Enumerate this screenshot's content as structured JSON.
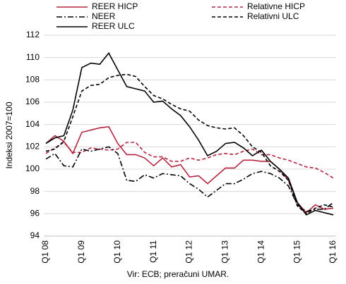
{
  "chart_data": {
    "type": "line",
    "y_label": "Indeksi 2007=100",
    "source": "Vir: ECB; preračuni UMAR.",
    "categories": [
      "Q1 08",
      null,
      null,
      null,
      "Q1 09",
      null,
      null,
      null,
      "Q1 10",
      null,
      null,
      null,
      "Q1 11",
      null,
      null,
      null,
      "Q1 12",
      null,
      null,
      null,
      "Q1 13",
      null,
      null,
      null,
      "Q1 14",
      null,
      null,
      null,
      "Q1 15",
      null,
      null,
      null,
      "Q1 16"
    ],
    "series": [
      {
        "name": "REER HICP",
        "color": "#b5253f",
        "dash": "solid",
        "values": [
          102.3,
          103.0,
          102.5,
          101.4,
          103.3,
          103.5,
          103.7,
          103.8,
          102.3,
          101.3,
          101.3,
          101.0,
          100.3,
          101.0,
          100.2,
          100.4,
          99.3,
          99.4,
          98.7,
          99.4,
          100.1,
          100.1,
          100.8,
          100.8,
          100.7,
          100.7,
          100.0,
          99.0,
          97.0,
          96.1,
          96.8,
          96.4,
          96.5
        ]
      },
      {
        "name": "Relativne HICP",
        "color": "#b5253f",
        "dash": "dashed",
        "values": [
          101.4,
          101.9,
          102.4,
          101.5,
          101.5,
          101.9,
          101.8,
          101.7,
          101.8,
          102.4,
          102.4,
          101.5,
          101.1,
          101.1,
          100.7,
          100.7,
          101.0,
          100.8,
          101.0,
          101.3,
          101.4,
          101.3,
          101.6,
          101.8,
          101.3,
          101.3,
          101.0,
          100.8,
          100.5,
          100.2,
          100.1,
          99.7,
          99.2
        ]
      },
      {
        "name": "NEER",
        "color": "#000000",
        "dash": "dashdot",
        "values": [
          100.9,
          101.4,
          100.3,
          100.2,
          101.8,
          101.6,
          101.8,
          102.0,
          101.4,
          99.0,
          98.9,
          99.5,
          99.2,
          99.6,
          99.5,
          99.4,
          98.7,
          98.2,
          97.5,
          98.1,
          98.7,
          98.7,
          99.1,
          99.6,
          99.8,
          99.6,
          99.2,
          98.5,
          96.8,
          96.2,
          96.4,
          96.4,
          97.0
        ]
      },
      {
        "name": "Relativni ULC",
        "color": "#000000",
        "dash": "dashed",
        "values": [
          101.6,
          101.8,
          102.5,
          104.7,
          107.0,
          107.5,
          107.6,
          108.2,
          108.4,
          108.5,
          108.3,
          107.4,
          106.6,
          106.3,
          105.8,
          105.4,
          105.2,
          104.4,
          103.9,
          103.7,
          103.6,
          103.7,
          103.0,
          102.0,
          101.5,
          100.3,
          99.8,
          99.0,
          96.7,
          96.0,
          96.5,
          96.8,
          96.6
        ]
      },
      {
        "name": "REER ULC",
        "color": "#000000",
        "dash": "solid",
        "values": [
          102.3,
          102.8,
          103.0,
          105.3,
          109.1,
          109.5,
          109.4,
          110.4,
          108.9,
          107.4,
          107.2,
          107.0,
          106.0,
          106.1,
          105.4,
          104.8,
          103.8,
          102.6,
          101.2,
          101.6,
          102.3,
          102.4,
          101.9,
          101.2,
          101.7,
          100.7,
          100.0,
          99.2,
          97.0,
          95.9,
          96.3,
          96.1,
          95.9
        ]
      }
    ],
    "ylim": [
      94,
      112
    ],
    "yticks": [
      94,
      96,
      98,
      100,
      102,
      104,
      106,
      108,
      110,
      112
    ],
    "grid": true
  }
}
